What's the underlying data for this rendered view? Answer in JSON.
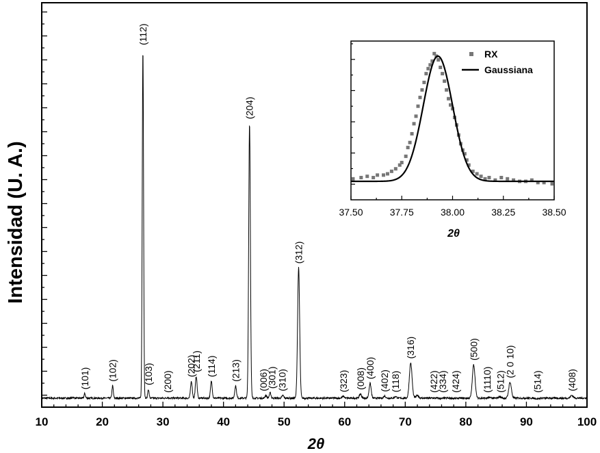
{
  "chart_data": [
    {
      "type": "line",
      "xlabel": "2θ",
      "ylabel": "Intensidad (U. A.)",
      "xlim": [
        10,
        100
      ],
      "ylim": [
        0,
        100
      ],
      "x_ticks": [
        "10",
        "20",
        "30",
        "40",
        "50",
        "60",
        "70",
        "80",
        "90",
        "100"
      ],
      "y_tick_labels_shown": false,
      "grid": false,
      "baseline": 1,
      "noise": 0.25,
      "peaks": [
        {
          "x": 15.2,
          "y": 1.2,
          "label": ""
        },
        {
          "x": 17.1,
          "y": 2.3,
          "label": "(101)"
        },
        {
          "x": 21.7,
          "y": 4.5,
          "label": "(102)"
        },
        {
          "x": 26.7,
          "y": 100,
          "label": "(112)"
        },
        {
          "x": 27.6,
          "y": 3.5,
          "label": "(103)"
        },
        {
          "x": 30.8,
          "y": 1.2,
          "label": "(200)"
        },
        {
          "x": 34.7,
          "y": 5.8,
          "label": "(202)"
        },
        {
          "x": 35.5,
          "y": 7.2,
          "label": "(211)"
        },
        {
          "x": 38.0,
          "y": 5.8,
          "label": "(114)"
        },
        {
          "x": 42.0,
          "y": 4.5,
          "label": "(213)"
        },
        {
          "x": 44.3,
          "y": 79,
          "label": "(204)"
        },
        {
          "x": 47.0,
          "y": 1.8,
          "label": "(006)"
        },
        {
          "x": 47.7,
          "y": 2.5,
          "label": "(301)"
        },
        {
          "x": 49.8,
          "y": 1.8,
          "label": "(310)"
        },
        {
          "x": 52.4,
          "y": 38,
          "label": "(312)"
        },
        {
          "x": 59.8,
          "y": 1.5,
          "label": "(323)"
        },
        {
          "x": 62.6,
          "y": 2.2,
          "label": "(008)"
        },
        {
          "x": 64.2,
          "y": 5.2,
          "label": "(400)"
        },
        {
          "x": 66.6,
          "y": 1.6,
          "label": "(402)"
        },
        {
          "x": 68.4,
          "y": 1.5,
          "label": "(118)"
        },
        {
          "x": 70.9,
          "y": 11,
          "label": "(316)"
        },
        {
          "x": 72.0,
          "y": 1.8,
          "label": ""
        },
        {
          "x": 75.0,
          "y": 1.0,
          "label": "(422)"
        },
        {
          "x": 76.0,
          "y": 0.9,
          "label": "(334)"
        },
        {
          "x": 78.3,
          "y": 0.9,
          "label": "(424)"
        },
        {
          "x": 81.3,
          "y": 10.5,
          "label": "(500)"
        },
        {
          "x": 84.0,
          "y": 1.2,
          "label": "(1110)"
        },
        {
          "x": 85.6,
          "y": 1.4,
          "label": "(512)"
        },
        {
          "x": 87.3,
          "y": 5.5,
          "label": "(2 0 10)"
        },
        {
          "x": 91.8,
          "y": 0.8,
          "label": "(514)"
        },
        {
          "x": 97.5,
          "y": 1.8,
          "label": "(408)"
        }
      ]
    },
    {
      "type": "scatter",
      "xlabel": "2θ",
      "ylabel": "",
      "xlim": [
        37.5,
        38.5
      ],
      "ylim": [
        0,
        1.05
      ],
      "x_ticks": [
        "37.50",
        "37.75",
        "38.00",
        "38.25",
        "38.50"
      ],
      "legend": {
        "position": "top-right"
      },
      "series": [
        {
          "name": "RX",
          "marker": "square",
          "color": "#777777",
          "x": [
            37.51,
            37.55,
            37.58,
            37.61,
            37.63,
            37.66,
            37.68,
            37.7,
            37.72,
            37.74,
            37.75,
            37.77,
            37.78,
            37.79,
            37.8,
            37.81,
            37.82,
            37.83,
            37.84,
            37.85,
            37.86,
            37.87,
            37.88,
            37.89,
            37.9,
            37.91,
            37.92,
            37.93,
            37.94,
            37.95,
            37.96,
            37.97,
            37.98,
            37.99,
            38.0,
            38.01,
            38.02,
            38.03,
            38.04,
            38.05,
            38.06,
            38.07,
            38.08,
            38.1,
            38.12,
            38.14,
            38.16,
            38.18,
            38.21,
            38.24,
            38.27,
            38.3,
            38.33,
            38.36,
            38.39,
            38.42,
            38.45,
            38.49
          ],
          "y": [
            0.02,
            0.03,
            0.04,
            0.03,
            0.05,
            0.05,
            0.06,
            0.08,
            0.1,
            0.13,
            0.15,
            0.2,
            0.27,
            0.31,
            0.38,
            0.46,
            0.52,
            0.6,
            0.67,
            0.73,
            0.79,
            0.86,
            0.9,
            0.93,
            0.96,
            1.02,
            1.0,
            0.97,
            0.91,
            0.86,
            0.8,
            0.73,
            0.66,
            0.61,
            0.58,
            0.51,
            0.45,
            0.37,
            0.3,
            0.25,
            0.22,
            0.17,
            0.13,
            0.08,
            0.06,
            0.04,
            0.02,
            0.03,
            0.01,
            0.03,
            0.02,
            0.01,
            0.0,
            0.0,
            0.01,
            -0.01,
            -0.01,
            -0.02
          ]
        },
        {
          "name": "Gaussiana",
          "type": "line",
          "color": "#000000",
          "center": 37.928,
          "sigma": 0.072,
          "amplitude": 1.0,
          "offset": 0.0
        }
      ]
    }
  ]
}
